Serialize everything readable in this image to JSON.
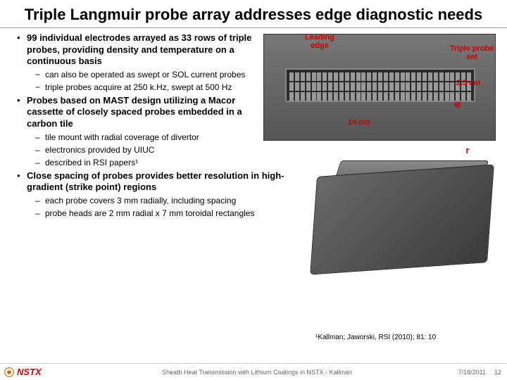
{
  "title": "Triple Langmuir probe array addresses edge diagnostic needs",
  "bullets": [
    {
      "level": 1,
      "marker": "•",
      "text": "99 individual electrodes arrayed as 33 rows of triple probes, providing density and temperature on a continuous basis",
      "bold": true
    },
    {
      "level": 2,
      "marker": "−",
      "text": "can also be operated as swept or SOL current probes"
    },
    {
      "level": 2,
      "marker": "−",
      "text": "triple probes acquire at 250 k.Hz, swept at 500 Hz"
    },
    {
      "level": 1,
      "marker": "•",
      "text": "Probes based on MAST design utilizing a Macor cassette of closely spaced probes embedded in a carbon tile",
      "bold": true
    },
    {
      "level": 2,
      "marker": "–",
      "text": "tile mount with radial coverage of divertor"
    },
    {
      "level": 2,
      "marker": "–",
      "text": "electronics provided by UIUC"
    },
    {
      "level": 2,
      "marker": "–",
      "text": "described in RSI papers¹"
    },
    {
      "level": 1,
      "marker": "•",
      "text": "Close spacing of probes provides better resolution in high-gradient (strike point) regions",
      "bold": true,
      "wide": true
    },
    {
      "level": 2,
      "marker": "–",
      "text": "each probe covers 3 mm radially, including spacing"
    },
    {
      "level": 2,
      "marker": "–",
      "text": "probe heads are 2 mm radial x 7 mm toroidal rectangles"
    }
  ],
  "labels": {
    "leading_edge": "Leading edge",
    "triple_probe_set": "Triple probe set",
    "dim_25cm": "2.5 cm",
    "phi": "φ",
    "dim_10cm": "10 cm",
    "r": "r"
  },
  "reference": "¹Kallman; Jaworski, RSI (2010); 81: 10",
  "footer": {
    "logo": "NSTX",
    "center": "Sheath Heat Transmission with Lithium Coatings in NSTX - Kallman",
    "date": "7/18/2011",
    "page": "12"
  },
  "colors": {
    "label_red": "#cc0000",
    "border_gray": "#999999",
    "footer_gray": "#666666"
  }
}
